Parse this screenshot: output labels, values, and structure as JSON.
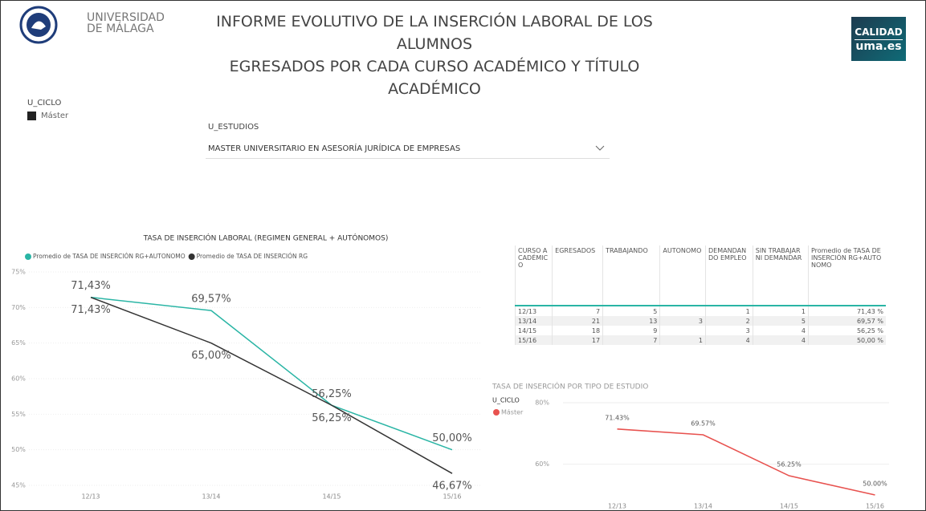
{
  "header": {
    "university": [
      "UNIVERSIDAD",
      "DE MÁLAGA"
    ],
    "title": [
      "INFORME EVOLUTIVO DE LA INSERCIÓN LABORAL DE LOS ALUMNOS",
      "EGRESADOS POR CADA CURSO ACADÉMICO Y TÍTULO ACADÉMICO"
    ],
    "badge": [
      "CALIDAD",
      "uma.es"
    ]
  },
  "slicers": {
    "ciclo": {
      "label": "U_CICLO",
      "item": "Máster"
    },
    "estudios": {
      "label": "U_ESTUDIOS",
      "selected": "MASTER UNIVERSITARIO EN ASESORÍA JURÍDICA DE EMPRESAS"
    }
  },
  "table": {
    "columns": [
      "CURSO ACADÉMICO",
      "EGRESADOS",
      "TRABAJANDO",
      "AUTONOMO",
      "DEMANDANDO EMPLEO",
      "SIN TRABAJAR NI DEMANDAR",
      "Promedio de TASA DE INSERCIÓN RG+AUTONOMO"
    ],
    "rows": [
      [
        "12/13",
        7,
        5,
        null,
        1,
        1,
        "71,43 %"
      ],
      [
        "13/14",
        21,
        13,
        3,
        2,
        5,
        "69,57 %"
      ],
      [
        "14/15",
        18,
        9,
        null,
        3,
        4,
        "56,25 %"
      ],
      [
        "15/16",
        17,
        7,
        1,
        4,
        4,
        "50,00 %"
      ]
    ]
  },
  "chart_data": [
    {
      "type": "line",
      "title": "TASA DE INSERCIÓN LABORAL (REGIMEN GENERAL + AUTÓNOMOS)",
      "categories": [
        "12/13",
        "13/14",
        "14/15",
        "15/16"
      ],
      "series": [
        {
          "name": "Promedio de TASA DE INSERCIÓN RG+AUTONOMO",
          "color": "#2ab5a5",
          "values": [
            71.43,
            69.57,
            56.25,
            50.0
          ],
          "value_labels": [
            "71,43%",
            "69,57%",
            "56,25%",
            "50,00%"
          ]
        },
        {
          "name": "Promedio de TASA DE INSERCIÓN RG",
          "color": "#333333",
          "values": [
            71.43,
            65.0,
            56.25,
            46.67
          ],
          "value_labels": [
            "71,43%",
            "65,00%",
            "56,25%",
            "46,67%"
          ]
        }
      ],
      "ylim": [
        45,
        75
      ],
      "yticks": [
        {
          "value": 45,
          "label": "45%"
        },
        {
          "value": 50,
          "label": "50%"
        },
        {
          "value": 55,
          "label": "55%"
        },
        {
          "value": 60,
          "label": "60%"
        },
        {
          "value": 65,
          "label": "65%"
        },
        {
          "value": 70,
          "label": "70%"
        },
        {
          "value": 75,
          "label": "75%"
        }
      ],
      "grid": true
    },
    {
      "type": "line",
      "title": "TASA DE INSERCIÓN POR TIPO DE ESTUDIO",
      "legend_title": "U_CICLO",
      "categories": [
        "12/13",
        "13/14",
        "14/15",
        "15/16"
      ],
      "series": [
        {
          "name": "Máster",
          "color": "#e8524f",
          "values": [
            71.43,
            69.57,
            56.25,
            50.0
          ],
          "value_labels": [
            "71.43%",
            "69.57%",
            "56.25%",
            "50.00%"
          ]
        }
      ],
      "ylim": [
        50,
        80
      ],
      "yticks": [
        {
          "value": 60,
          "label": "60%"
        },
        {
          "value": 80,
          "label": "80%"
        }
      ],
      "grid": true
    }
  ]
}
